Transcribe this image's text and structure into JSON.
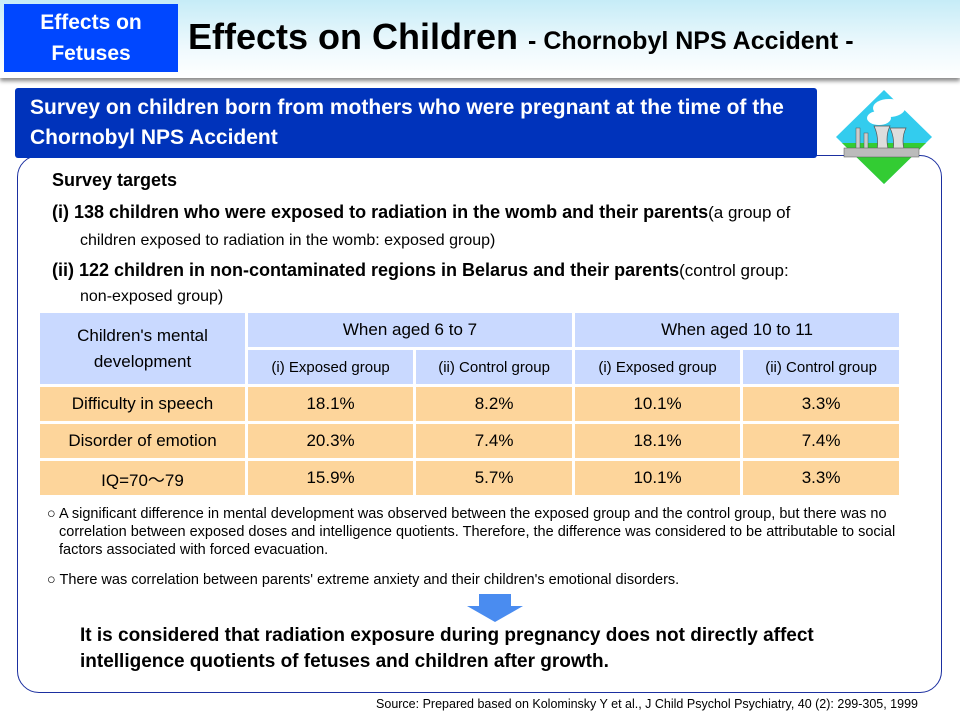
{
  "header": {
    "tag": "Effects on Fetuses",
    "title": "Effects on Children",
    "subtitle": "- Chornobyl NPS Accident -"
  },
  "banner": "Survey on children born from mothers who were pregnant at the time of the Chornobyl NPS Accident",
  "targets": {
    "heading": "Survey targets",
    "i_bold": "(i) 138 children who were exposed to radiation in the womb and their parents",
    "i_rest": "(a group of",
    "i_line2": "children exposed to radiation in the womb: exposed group)",
    "ii_bold": "(ii) 122 children in non-contaminated regions in Belarus and their parents",
    "ii_rest": "(control group:",
    "ii_line2": "non-exposed group)"
  },
  "table": {
    "corner": "Children's mental development",
    "age_groups": [
      "When aged 6 to 7",
      "When aged 10 to 11"
    ],
    "subheaders": [
      "(i) Exposed group",
      "(ii) Control group",
      "(i) Exposed group",
      "(ii) Control group"
    ],
    "rows": [
      {
        "label": "Difficulty in speech",
        "values": [
          "18.1%",
          "8.2%",
          "10.1%",
          "3.3%"
        ]
      },
      {
        "label": "Disorder of emotion",
        "values": [
          "20.3%",
          "7.4%",
          "18.1%",
          "7.4%"
        ]
      },
      {
        "label": "IQ=70～79",
        "values": [
          "15.9%",
          "5.7%",
          "10.1%",
          "3.3%"
        ]
      }
    ]
  },
  "notes": [
    "○ A significant difference in mental development was observed between the exposed group and the control group, but there was no correlation between exposed doses and intelligence quotients. Therefore, the difference was considered to be attributable to social factors associated with forced evacuation.",
    "○ There was correlation between parents' extreme anxiety and their children's emotional disorders."
  ],
  "conclusion": "It is considered that radiation exposure during pregnancy does not directly affect intelligence quotients of fetuses and children after growth.",
  "source": "Source: Prepared based on Kolominsky Y et al., J Child Psychol Psychiatry, 40 (2): 299-305, 1999"
}
